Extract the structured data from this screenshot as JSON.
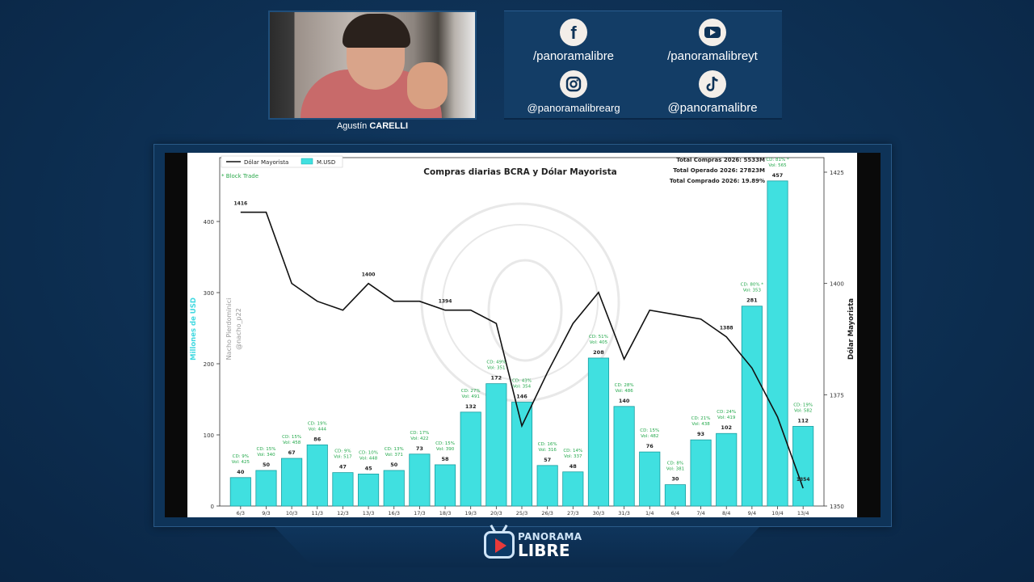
{
  "presenter": {
    "first_name": "Agustín",
    "last_name": "CARELLI"
  },
  "socials": [
    {
      "network": "facebook-icon",
      "handle": "/panoramalibre"
    },
    {
      "network": "youtube-icon",
      "handle": "/panoramalibreyt"
    },
    {
      "network": "instagram-icon",
      "handle": "@panoramalibrearg"
    },
    {
      "network": "tiktok-icon",
      "handle": "@panoramalibre"
    }
  ],
  "logo": {
    "line1": "PANORAMA",
    "line2": "LIBRE"
  },
  "chart_data": {
    "type": "bar",
    "title": "Compras diarias BCRA y Dólar Mayorista",
    "legend": {
      "line": "Dólar Mayorista",
      "bar": "M.USD",
      "note": "* Block Trade",
      "position": "top-left"
    },
    "summary": [
      "Total Compras 2026: 5533M",
      "Total Operado 2026: 27823M",
      "Total Comprado 2026: 19.89%"
    ],
    "ylabel": "Millones de USD",
    "y2label": "Dólar Mayorista",
    "watermark": [
      "Nacho Pierdominici",
      "@nacho_p22"
    ],
    "ylim": [
      0,
      400
    ],
    "yticks": [
      0,
      100,
      200,
      300,
      400
    ],
    "y2lim": [
      1350,
      1425
    ],
    "y2ticks": [
      1350,
      1375,
      1400,
      1425
    ],
    "categories": [
      "6/3",
      "9/3",
      "10/3",
      "11/3",
      "12/3",
      "13/3",
      "16/3",
      "17/3",
      "18/3",
      "19/3",
      "20/3",
      "25/3",
      "26/3",
      "27/3",
      "30/3",
      "31/3",
      "1/4",
      "6/4",
      "7/4",
      "8/4",
      "9/4",
      "10/4",
      "13/4"
    ],
    "series": [
      {
        "name": "M.USD",
        "kind": "bar",
        "color": "#40e0e0",
        "values": [
          40,
          50,
          67,
          86,
          47,
          45,
          50,
          73,
          58,
          132,
          172,
          146,
          57,
          48,
          208,
          140,
          76,
          30,
          93,
          102,
          281,
          457,
          112
        ]
      },
      {
        "name": "Dólar Mayorista",
        "kind": "line",
        "color": "#111111",
        "values": [
          1416,
          1416,
          1400,
          1396,
          1394,
          1400,
          1396,
          1396,
          1394,
          1394,
          1391,
          1368,
          1380,
          1391,
          1398,
          1383,
          1394,
          1393,
          1392,
          1388,
          1381,
          1370,
          1354
        ]
      }
    ],
    "line_labels": [
      {
        "index": 0,
        "text": "1416"
      },
      {
        "index": 5,
        "text": "1400"
      },
      {
        "index": 8,
        "text": "1394"
      },
      {
        "index": 19,
        "text": "1388"
      },
      {
        "index": 22,
        "text": "1354"
      }
    ],
    "bar_annotations": [
      {
        "index": 0,
        "cd": "CD: 9%",
        "vol": "Vol: 425"
      },
      {
        "index": 1,
        "cd": "CD: 15%",
        "vol": "Vol: 340"
      },
      {
        "index": 2,
        "cd": "CD: 15%",
        "vol": "Vol: 458"
      },
      {
        "index": 3,
        "cd": "CD: 19%",
        "vol": "Vol: 444"
      },
      {
        "index": 4,
        "cd": "CD: 9%",
        "vol": "Vol: 517"
      },
      {
        "index": 5,
        "cd": "CD: 10%",
        "vol": "Vol: 448"
      },
      {
        "index": 6,
        "cd": "CD: 13%",
        "vol": "Vol: 371"
      },
      {
        "index": 7,
        "cd": "CD: 17%",
        "vol": "Vol: 422"
      },
      {
        "index": 8,
        "cd": "CD: 15%",
        "vol": "Vol: 390"
      },
      {
        "index": 9,
        "cd": "CD: 27%",
        "vol": "Vol: 491"
      },
      {
        "index": 10,
        "cd": "CD: 49%",
        "vol": "Vol: 351"
      },
      {
        "index": 11,
        "cd": "CD: 43%",
        "vol": "Vol: 354"
      },
      {
        "index": 12,
        "cd": "CD: 16%",
        "vol": "Vol: 316"
      },
      {
        "index": 13,
        "cd": "CD: 14%",
        "vol": "Vol: 337"
      },
      {
        "index": 14,
        "cd": "CD: 51%",
        "vol": "Vol: 405"
      },
      {
        "index": 15,
        "cd": "CD: 28%",
        "vol": "Vol: 486"
      },
      {
        "index": 16,
        "cd": "CD: 15%",
        "vol": "Vol: 482"
      },
      {
        "index": 17,
        "cd": "CD: 8%",
        "vol": "Vol: 381"
      },
      {
        "index": 18,
        "cd": "CD: 21%",
        "vol": "Vol: 438"
      },
      {
        "index": 19,
        "cd": "CD: 24%",
        "vol": "Vol: 419"
      },
      {
        "index": 20,
        "cd": "CD: 80% *",
        "vol": "Vol: 353"
      },
      {
        "index": 21,
        "cd": "CD: 81% *",
        "vol": "Vol: 565"
      },
      {
        "index": 22,
        "cd": "CD: 19%",
        "vol": "Vol: 582"
      }
    ]
  }
}
